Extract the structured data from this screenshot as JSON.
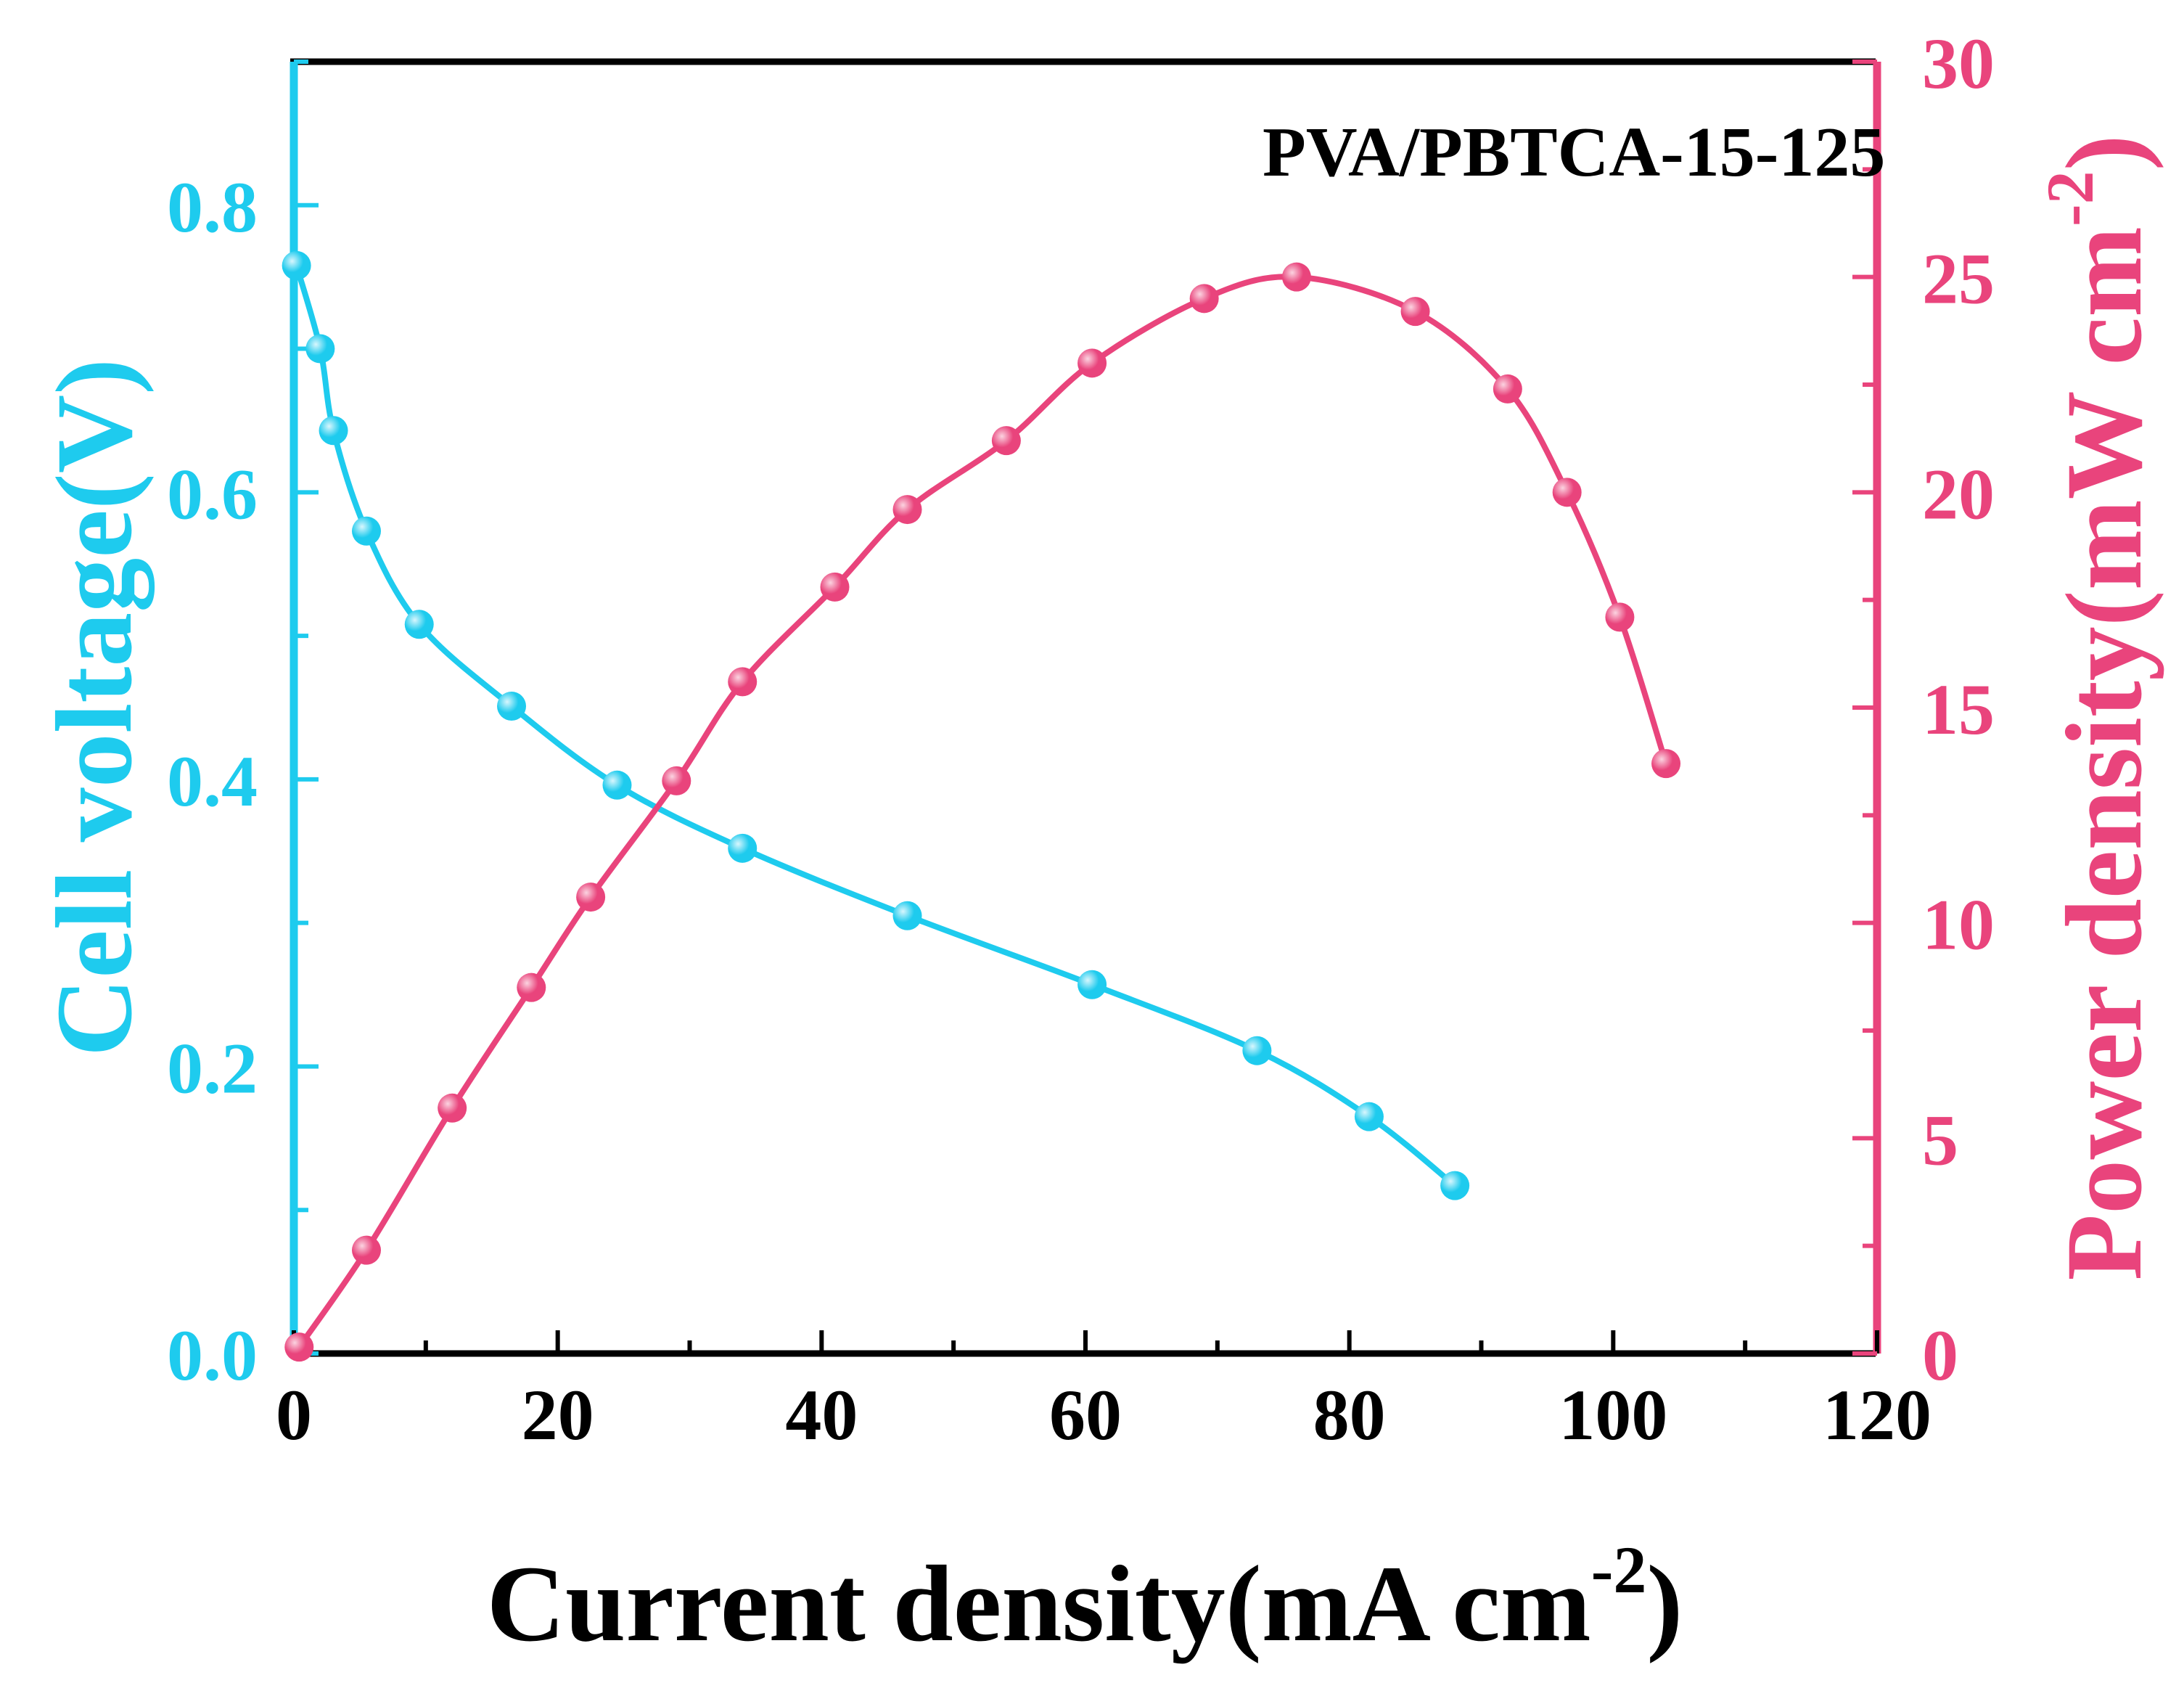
{
  "chart_data": {
    "type": "line",
    "title": "PVA/PBTCA-15-125",
    "xlabel": {
      "main": "Current density(mA cm",
      "sup": "-2",
      "close": ")"
    },
    "ylabel_left": "Cell voltage(V)",
    "ylabel_right": {
      "main": "Power density(mW cm",
      "sup": "-2",
      "close": ")"
    },
    "xlim": [
      0,
      120
    ],
    "ylim_left": [
      0,
      0.9
    ],
    "ylim_right": [
      0,
      30
    ],
    "x_ticks": [
      "0",
      "20",
      "40",
      "60",
      "80",
      "100",
      "120"
    ],
    "y_left_ticks": [
      "0.0",
      "0.2",
      "0.4",
      "0.6",
      "0.8"
    ],
    "y_right_ticks": [
      "0",
      "5",
      "10",
      "15",
      "20",
      "25",
      "30"
    ],
    "colors": {
      "left": "#1ecbee",
      "right": "#e9447c",
      "axis": "#000000"
    },
    "series": [
      {
        "name": "Cell voltage",
        "axis": "left",
        "x": [
          0.2,
          2,
          3,
          5.5,
          9.5,
          16.5,
          24.5,
          34,
          46.5,
          60.5,
          73,
          81.5,
          88
        ],
        "y": [
          0.758,
          0.7,
          0.643,
          0.573,
          0.508,
          0.451,
          0.396,
          0.352,
          0.305,
          0.257,
          0.211,
          0.165,
          0.117
        ]
      },
      {
        "name": "Power density",
        "axis": "right",
        "x": [
          0.4,
          5.5,
          12,
          18,
          22.5,
          29,
          34,
          41,
          46.5,
          54,
          60.5,
          69,
          76,
          85,
          92,
          96.5,
          100.5,
          104
        ],
        "y": [
          0.15,
          2.4,
          5.7,
          8.5,
          10.6,
          13.3,
          15.6,
          17.8,
          19.6,
          21.2,
          23.0,
          24.5,
          25.0,
          24.2,
          22.4,
          20.0,
          17.1,
          13.7
        ]
      }
    ]
  }
}
